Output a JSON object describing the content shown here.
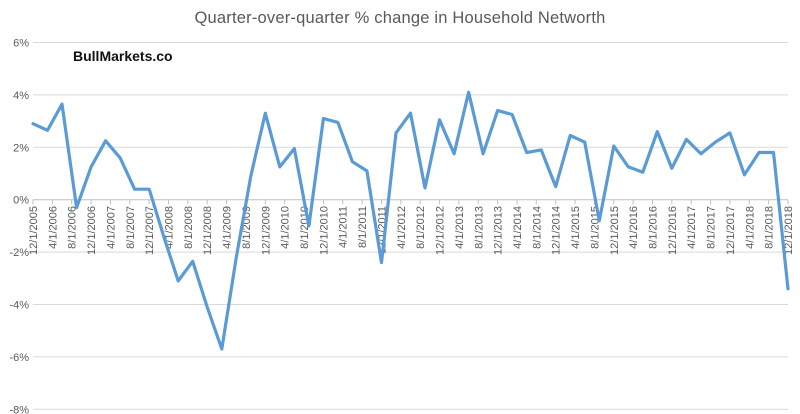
{
  "chart_data": {
    "type": "line",
    "title": "Quarter-over-quarter % change in Household Networth",
    "watermark": "BullMarkets.co",
    "xlabel": "",
    "ylabel": "",
    "ylim": [
      -8,
      6
    ],
    "grid": true,
    "legend": "none",
    "series_name": "QoQ % change in household net worth",
    "colors": {
      "line": "#5B9BD5",
      "gridline": "#D9D9D9",
      "axis": "#BFBFBF",
      "tick_text": "#595959",
      "title_text": "#595959",
      "watermark_text": "#111111"
    },
    "y_ticks": [
      {
        "label": "6%",
        "value": 6
      },
      {
        "label": "4%",
        "value": 4
      },
      {
        "label": "2%",
        "value": 2
      },
      {
        "label": "0%",
        "value": 0
      },
      {
        "label": "-2%",
        "value": -2
      },
      {
        "label": "-4%",
        "value": -4
      },
      {
        "label": "-6%",
        "value": -6
      },
      {
        "label": "-8%",
        "value": -8
      }
    ],
    "x_tick_labels": [
      "12/1/2005",
      "4/1/2006",
      "8/1/2006",
      "12/1/2006",
      "4/1/2007",
      "8/1/2007",
      "12/1/2007",
      "4/1/2008",
      "8/1/2008",
      "12/1/2008",
      "4/1/2009",
      "8/1/2009",
      "12/1/2009",
      "4/1/2010",
      "8/1/2010",
      "12/1/2010",
      "4/1/2011",
      "8/1/2011",
      "12/1/2011",
      "4/1/2012",
      "8/1/2012",
      "12/1/2012",
      "4/1/2013",
      "8/1/2013",
      "12/1/2013",
      "4/1/2014",
      "8/1/2014",
      "12/1/2014",
      "4/1/2015",
      "8/1/2015",
      "12/1/2015",
      "4/1/2016",
      "8/1/2016",
      "12/1/2016",
      "4/1/2017",
      "8/1/2017",
      "12/1/2017",
      "4/1/2018",
      "8/1/2018",
      "12/1/2018"
    ],
    "dates": [
      "12/1/2005",
      "3/1/2006",
      "6/1/2006",
      "9/1/2006",
      "12/1/2006",
      "3/1/2007",
      "6/1/2007",
      "9/1/2007",
      "12/1/2007",
      "3/1/2008",
      "6/1/2008",
      "9/1/2008",
      "12/1/2008",
      "3/1/2009",
      "6/1/2009",
      "9/1/2009",
      "12/1/2009",
      "3/1/2010",
      "6/1/2010",
      "9/1/2010",
      "12/1/2010",
      "3/1/2011",
      "6/1/2011",
      "9/1/2011",
      "12/1/2011",
      "3/1/2012",
      "6/1/2012",
      "9/1/2012",
      "12/1/2012",
      "3/1/2013",
      "6/1/2013",
      "9/1/2013",
      "12/1/2013",
      "3/1/2014",
      "6/1/2014",
      "9/1/2014",
      "12/1/2014",
      "3/1/2015",
      "6/1/2015",
      "9/1/2015",
      "12/1/2015",
      "3/1/2016",
      "6/1/2016",
      "9/1/2016",
      "12/1/2016",
      "3/1/2017",
      "6/1/2017",
      "9/1/2017",
      "12/1/2017",
      "3/1/2018",
      "6/1/2018",
      "9/1/2018",
      "12/1/2018"
    ],
    "values": [
      2.9,
      2.65,
      3.65,
      -0.3,
      1.25,
      2.25,
      1.6,
      0.4,
      0.4,
      -1.4,
      -3.1,
      -2.35,
      -4.1,
      -5.7,
      -2.2,
      0.9,
      3.3,
      1.25,
      1.95,
      -1.0,
      3.1,
      2.95,
      1.45,
      1.1,
      -2.4,
      2.55,
      3.3,
      0.45,
      3.05,
      1.75,
      4.1,
      1.75,
      3.4,
      3.25,
      1.8,
      1.9,
      0.5,
      2.45,
      2.2,
      -0.8,
      2.05,
      1.25,
      1.05,
      2.6,
      1.2,
      2.3,
      1.75,
      2.2,
      2.55,
      0.95,
      1.8,
      1.8,
      -3.4
    ]
  }
}
